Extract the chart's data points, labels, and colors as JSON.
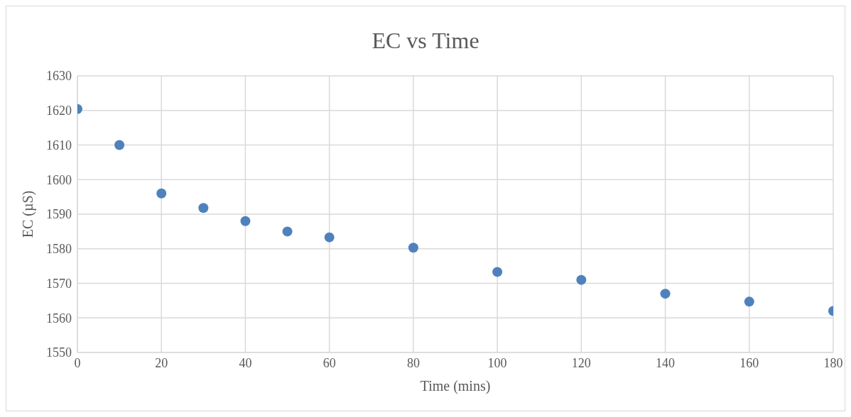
{
  "chart_data": {
    "type": "scatter",
    "title": "EC vs Time",
    "xlabel": "Time (mins)",
    "ylabel": "EC (µS)",
    "x": [
      0,
      10,
      20,
      30,
      40,
      50,
      60,
      80,
      100,
      120,
      140,
      160,
      180
    ],
    "series": [
      {
        "color": "#4f81bd",
        "values": [
          1620.4,
          1610,
          1596,
          1591.8,
          1588,
          1585,
          1583.3,
          1580.3,
          1573.3,
          1571,
          1567,
          1564.7,
          1562
        ]
      }
    ],
    "xlim": [
      0,
      180
    ],
    "xticks": [
      0,
      20,
      40,
      60,
      80,
      100,
      120,
      140,
      160,
      180
    ],
    "ylim": [
      1550,
      1630
    ],
    "yticks": [
      1550,
      1560,
      1570,
      1580,
      1590,
      1600,
      1610,
      1620,
      1630
    ],
    "grid": true,
    "marker": "circle"
  }
}
